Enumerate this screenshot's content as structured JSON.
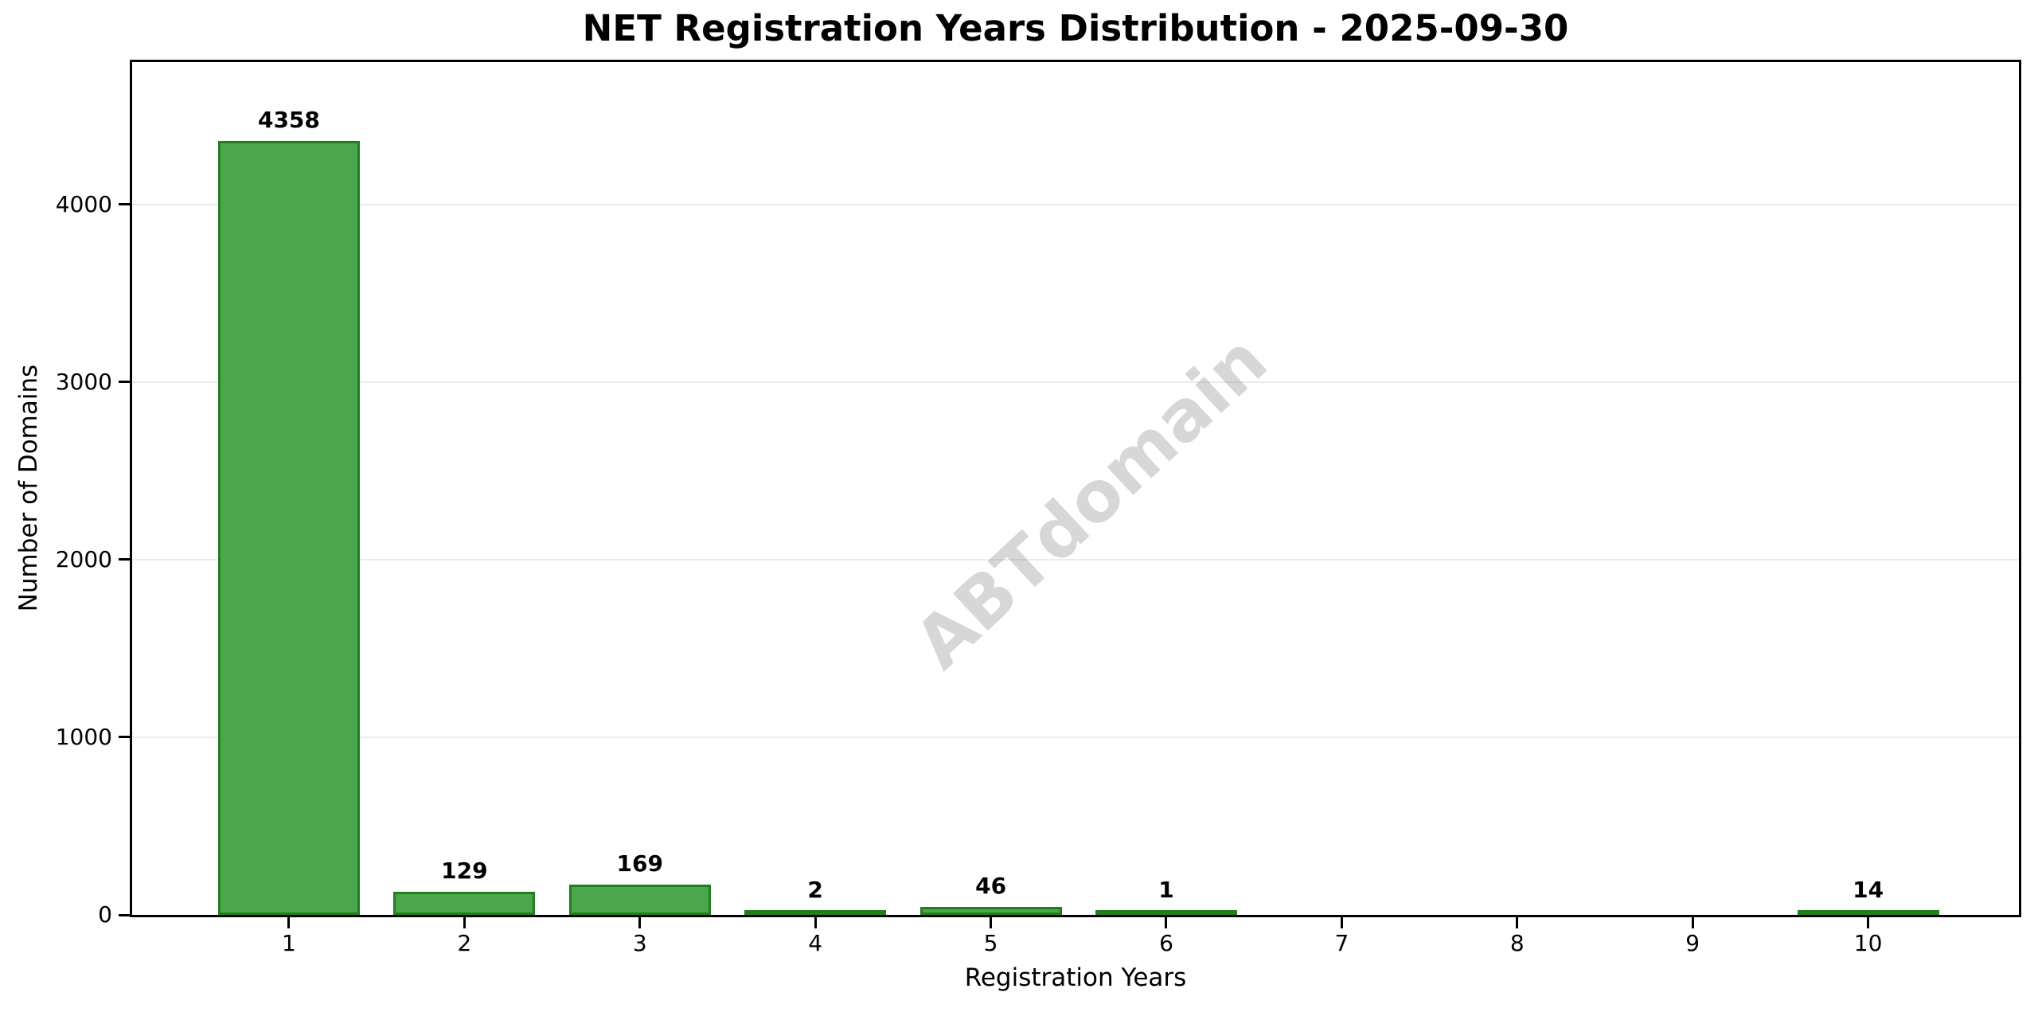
{
  "chart_data": {
    "type": "bar",
    "title": "NET Registration Years Distribution - 2025-09-30",
    "xlabel": "Registration Years",
    "ylabel": "Number of Domains",
    "categories": [
      "1",
      "2",
      "3",
      "4",
      "5",
      "6",
      "7",
      "8",
      "9",
      "10"
    ],
    "values": [
      4358,
      129,
      169,
      2,
      46,
      1,
      0,
      0,
      0,
      14
    ],
    "bar_value_labels": [
      "4358",
      "129",
      "169",
      "2",
      "46",
      "1",
      "",
      "",
      "",
      "14"
    ],
    "ylim": [
      0,
      4800
    ],
    "yticks": [
      0,
      1000,
      2000,
      3000,
      4000
    ],
    "grid": "horizontal",
    "legend_position": "none",
    "watermark": "ABTdomain",
    "colors": {
      "bar_fill": "#4BA64E",
      "bar_edge": "#20801F",
      "grid": "#EBEBEB",
      "axis": "#000000",
      "text": "#000000",
      "watermark": "rgba(130,130,130,0.32)",
      "background": "#FFFFFF"
    }
  }
}
